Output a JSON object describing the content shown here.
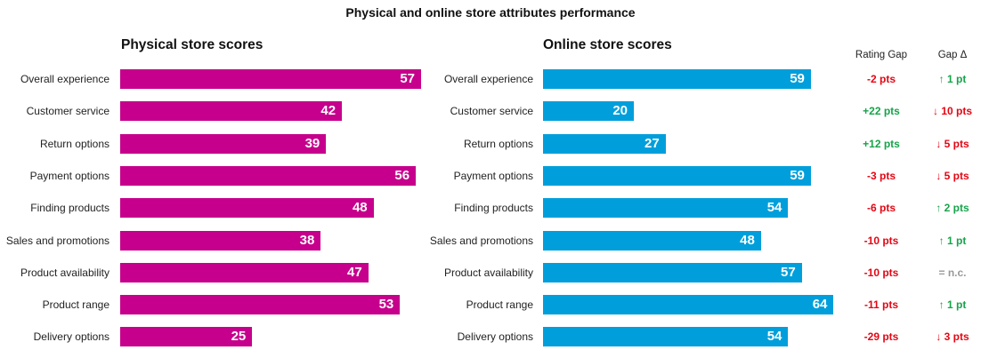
{
  "chart_data": {
    "type": "bar",
    "title": "Physical and online store attributes performance",
    "categories": [
      "Overall experience",
      "Customer service",
      "Return options",
      "Payment options",
      "Finding products",
      "Sales and promotions",
      "Product availability",
      "Product range",
      "Delivery options"
    ],
    "series": [
      {
        "name": "Physical store scores",
        "color": "#c6008c",
        "values": [
          57,
          42,
          39,
          56,
          48,
          38,
          47,
          53,
          25
        ]
      },
      {
        "name": "Online store scores",
        "color": "#009fdb",
        "values": [
          59,
          20,
          27,
          59,
          54,
          48,
          57,
          64,
          54
        ]
      }
    ],
    "columns": {
      "rating_gap_header": "Rating Gap",
      "gap_delta_header": "Gap Δ",
      "rating_gap": [
        {
          "text": "-2 pts",
          "color": "#e30613"
        },
        {
          "text": "+22 pts",
          "color": "#16a34a"
        },
        {
          "text": "+12 pts",
          "color": "#16a34a"
        },
        {
          "text": "-3 pts",
          "color": "#e30613"
        },
        {
          "text": "-6 pts",
          "color": "#e30613"
        },
        {
          "text": "-10 pts",
          "color": "#e30613"
        },
        {
          "text": "-10 pts",
          "color": "#e30613"
        },
        {
          "text": "-11 pts",
          "color": "#e30613"
        },
        {
          "text": "-29 pts",
          "color": "#e30613"
        }
      ],
      "gap_delta": [
        {
          "text": "↑ 1 pt",
          "color": "#16a34a"
        },
        {
          "text": "↓ 10 pts",
          "color": "#e30613"
        },
        {
          "text": "↓ 5 pts",
          "color": "#e30613"
        },
        {
          "text": "↓ 5 pts",
          "color": "#e30613"
        },
        {
          "text": "↑ 2 pts",
          "color": "#16a34a"
        },
        {
          "text": "↑ 1 pt",
          "color": "#16a34a"
        },
        {
          "text": "= n.c.",
          "color": "#999999"
        },
        {
          "text": "↑ 1 pt",
          "color": "#16a34a"
        },
        {
          "text": "↓ 3 pts",
          "color": "#e30613"
        }
      ]
    }
  }
}
